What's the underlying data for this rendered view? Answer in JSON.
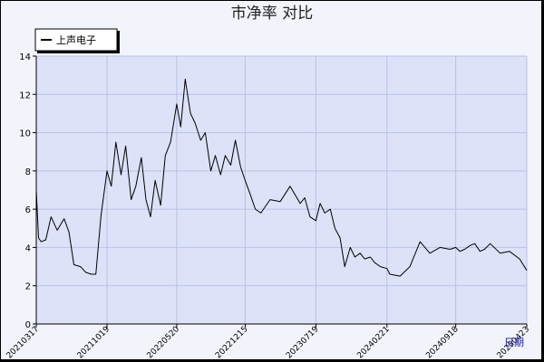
{
  "chart_data": {
    "type": "line",
    "title": "市净率  对比",
    "xlabel": "日期",
    "ylabel": "",
    "ylim": [
      0,
      14
    ],
    "yticks": [
      0,
      2,
      4,
      6,
      8,
      10,
      12,
      14
    ],
    "xtick_labels": [
      "20210317",
      "20211019",
      "20220520",
      "20221215",
      "20230719",
      "20240221",
      "20240918",
      "20250423"
    ],
    "grid": true,
    "legend_position": "top-left",
    "colors": {
      "plot_background": "#dde2f8",
      "frame_background": "#f2f4fc",
      "grid": "#b8c2e8",
      "line": "#000000",
      "axis_label": "#1a1aa6"
    },
    "series": [
      {
        "name": "上声电子",
        "x": [
          "20210317",
          "20210324",
          "20210401",
          "20210415",
          "20210501",
          "20210520",
          "20210610",
          "20210625",
          "20210710",
          "20210730",
          "20210815",
          "20210901",
          "20210915",
          "20211001",
          "20211019",
          "20211101",
          "20211115",
          "20211201",
          "20211215",
          "20220101",
          "20220115",
          "20220201",
          "20220215",
          "20220301",
          "20220315",
          "20220401",
          "20220415",
          "20220501",
          "20220520",
          "20220601",
          "20220615",
          "20220701",
          "20220715",
          "20220801",
          "20220815",
          "20220901",
          "20220915",
          "20221001",
          "20221015",
          "20221101",
          "20221115",
          "20221201",
          "20221215",
          "20221230",
          "20230115",
          "20230201",
          "20230301",
          "20230401",
          "20230501",
          "20230601",
          "20230615",
          "20230701",
          "20230719",
          "20230801",
          "20230815",
          "20230901",
          "20230915",
          "20231001",
          "20231015",
          "20231101",
          "20231115",
          "20231201",
          "20231215",
          "20240101",
          "20240115",
          "20240201",
          "20240221",
          "20240301",
          "20240401",
          "20240501",
          "20240601",
          "20240701",
          "20240801",
          "20240901",
          "20240918",
          "20241001",
          "20241015",
          "20241101",
          "20241115",
          "20241201",
          "20241215",
          "20250101",
          "20250201",
          "20250301",
          "20250401",
          "20250423"
        ],
        "values": [
          7.0,
          4.5,
          4.3,
          4.4,
          5.6,
          4.9,
          5.5,
          4.8,
          3.1,
          3.0,
          2.7,
          2.6,
          2.6,
          5.7,
          8.0,
          7.2,
          9.5,
          7.8,
          9.3,
          6.5,
          7.2,
          8.7,
          6.5,
          5.6,
          7.5,
          6.2,
          8.8,
          9.5,
          11.5,
          10.3,
          12.8,
          11.0,
          10.5,
          9.6,
          10.0,
          8.0,
          8.8,
          7.8,
          8.8,
          8.3,
          9.6,
          8.2,
          7.5,
          6.8,
          6.0,
          5.8,
          6.5,
          6.4,
          7.2,
          6.3,
          6.6,
          5.6,
          5.4,
          6.3,
          5.8,
          6.0,
          5.0,
          4.5,
          3.0,
          4.0,
          3.5,
          3.7,
          3.4,
          3.5,
          3.2,
          3.0,
          2.9,
          2.6,
          2.5,
          3.0,
          4.3,
          3.7,
          4.0,
          3.9,
          4.0,
          3.8,
          3.9,
          4.1,
          4.2,
          3.8,
          3.9,
          4.2,
          3.7,
          3.8,
          3.4,
          2.8
        ]
      }
    ]
  }
}
